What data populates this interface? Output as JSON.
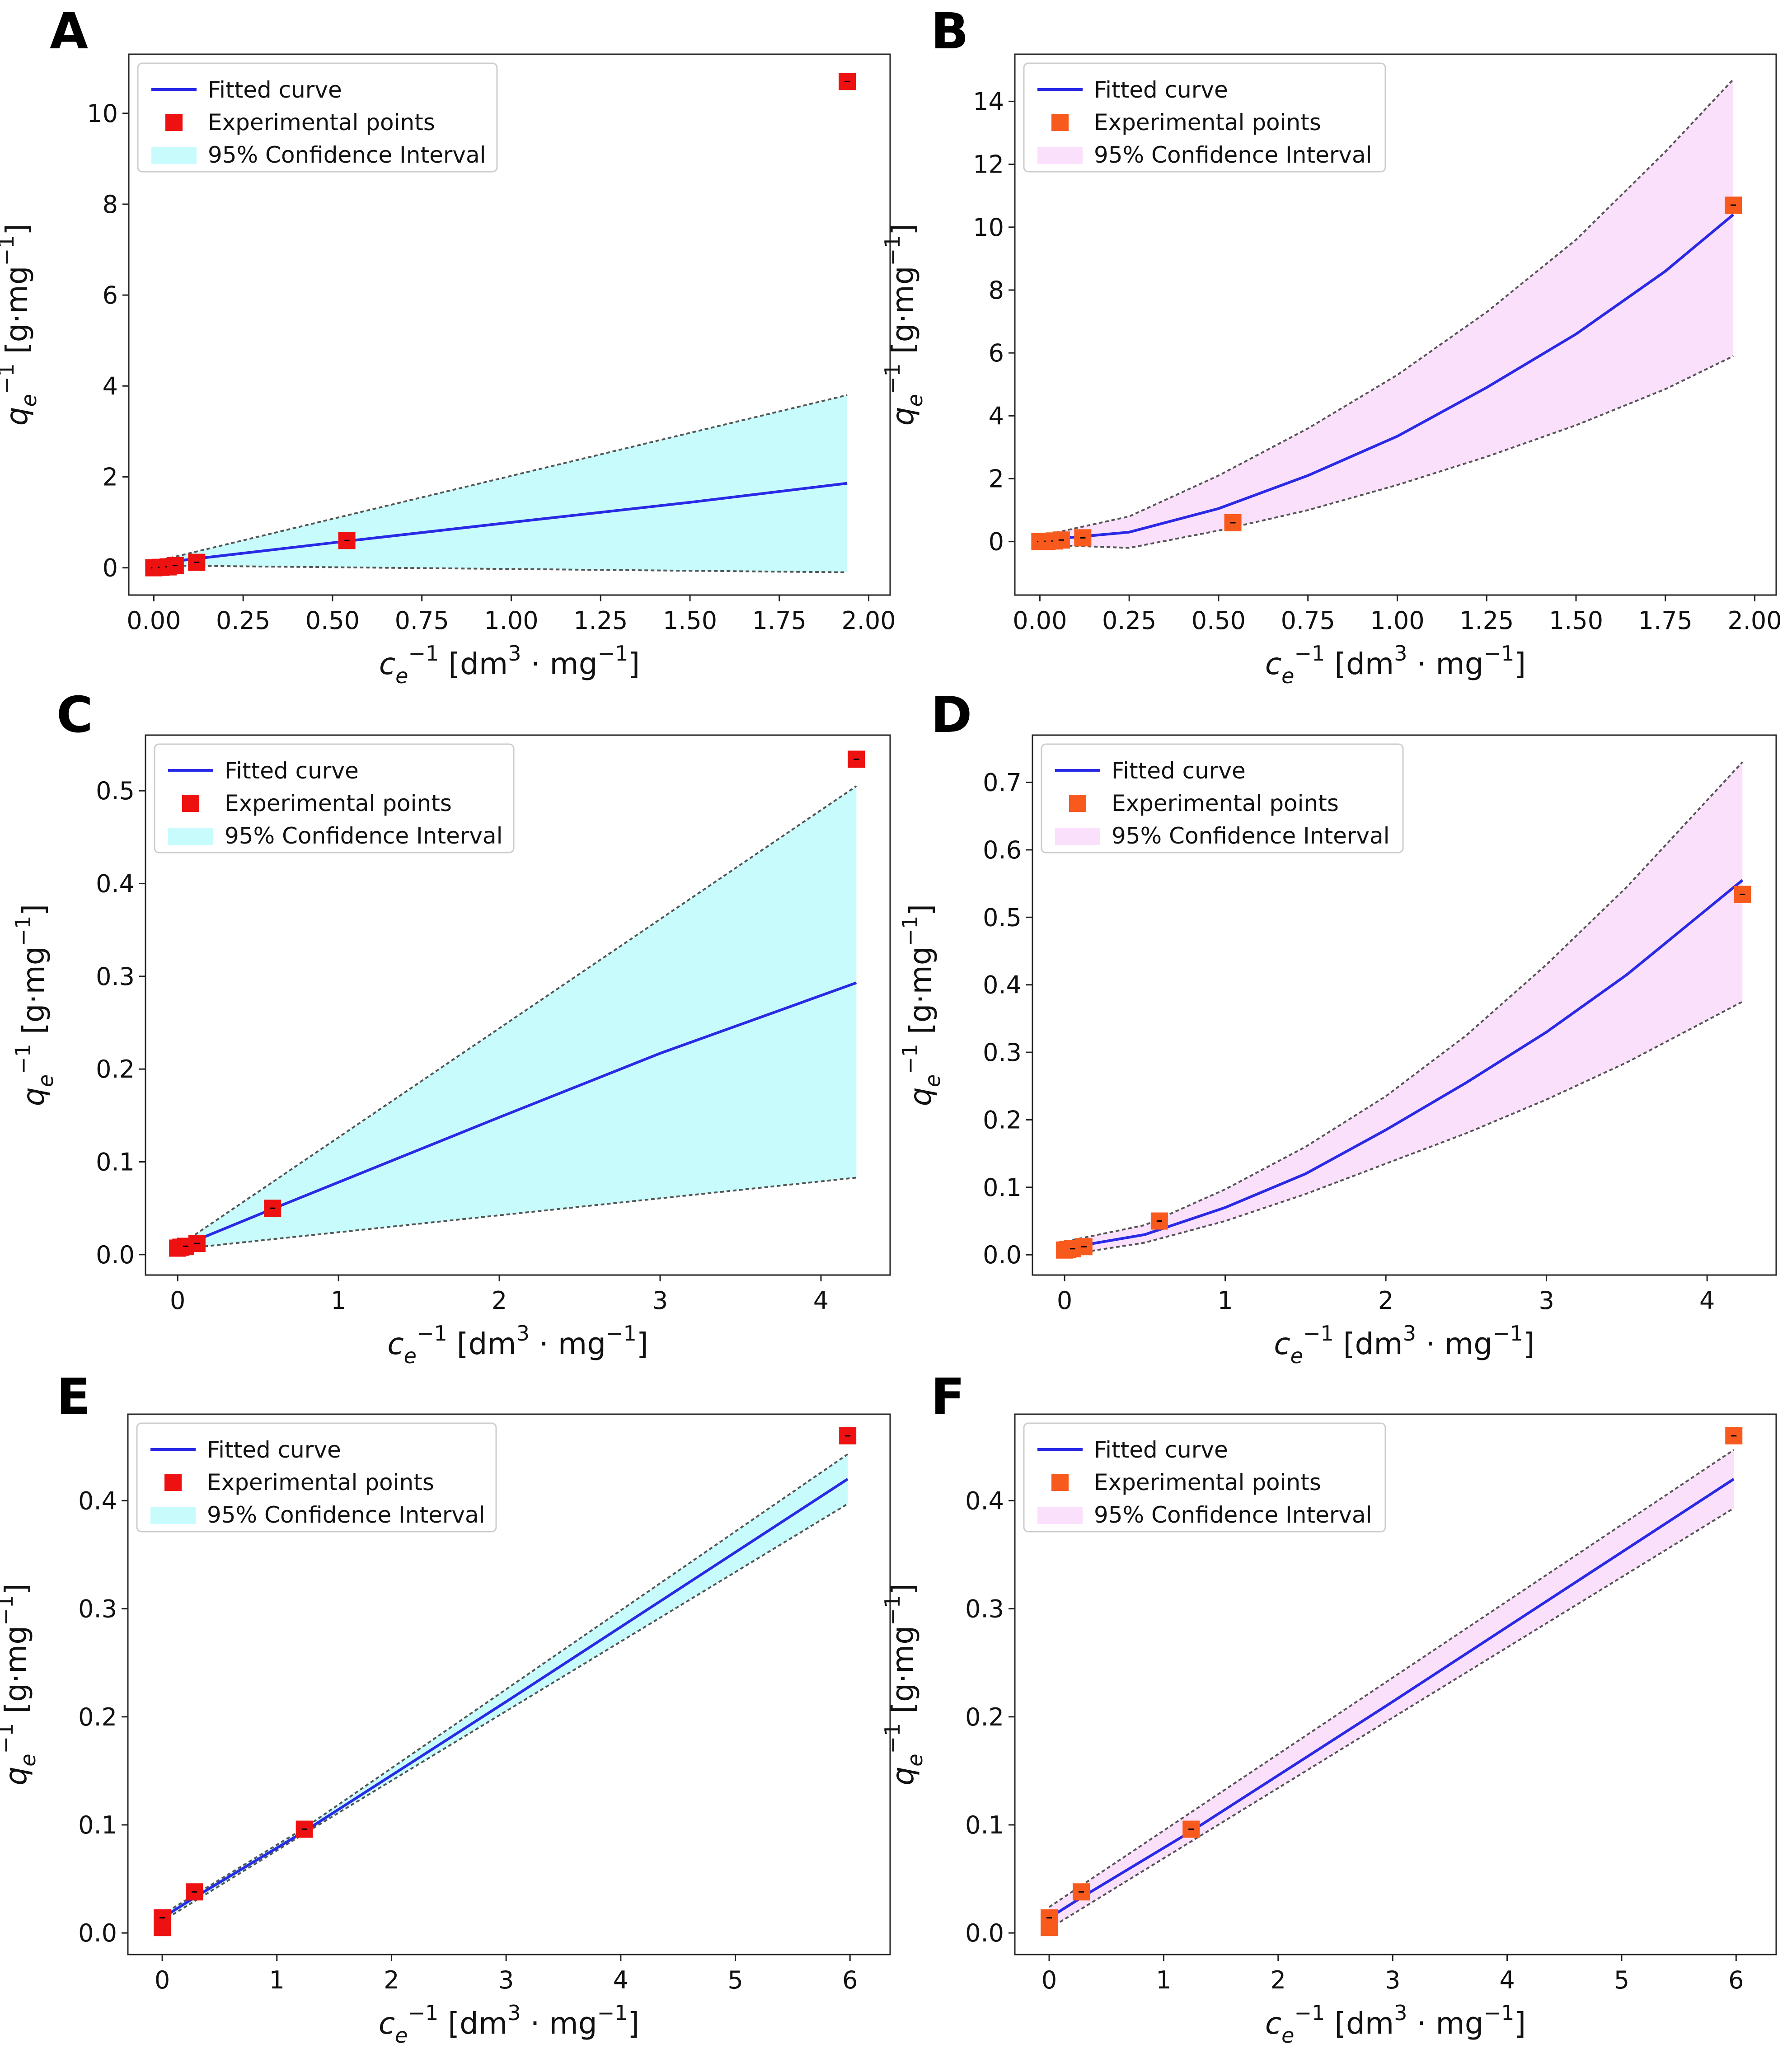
{
  "colors": {
    "line": "#2a2ae6",
    "point_red": "#ee1111",
    "point_orange": "#f85a1e",
    "band_cyan": "#c8fcfc",
    "band_pink": "#fbe0fb",
    "dash": "#555555",
    "axis": "#222222"
  },
  "chart_data": [
    {
      "panel": "A",
      "type": "line",
      "series": [
        {
          "name": "Fitted curve",
          "x": [
            0.01,
            0.5,
            1.0,
            1.5,
            1.94
          ],
          "y": [
            0.1,
            0.55,
            1.0,
            1.44,
            1.86
          ]
        },
        {
          "name": "Experimental points",
          "x": [
            0.0,
            0.02,
            0.04,
            0.06,
            0.12,
            0.54,
            1.94
          ],
          "y": [
            0.0,
            0.01,
            0.02,
            0.05,
            0.12,
            0.6,
            10.7
          ]
        },
        {
          "name": "95% Confidence Interval",
          "x": [
            0.01,
            1.94
          ],
          "lower": [
            0.05,
            -0.1
          ],
          "upper": [
            0.15,
            3.8
          ]
        }
      ],
      "xticks": [
        "0.00",
        "0.25",
        "0.50",
        "0.75",
        "1.00",
        "1.25",
        "1.50",
        "1.75",
        "2.00"
      ],
      "yticks": [
        "0",
        "2",
        "4",
        "6",
        "8",
        "10"
      ],
      "xlim": [
        -0.07,
        2.06
      ],
      "ylim": [
        -0.6,
        11.3
      ]
    },
    {
      "panel": "B",
      "type": "line",
      "series": [
        {
          "name": "Fitted curve",
          "x": [
            0.01,
            0.25,
            0.5,
            0.75,
            1.0,
            1.25,
            1.5,
            1.75,
            1.94
          ],
          "y": [
            0.05,
            0.3,
            1.05,
            2.1,
            3.35,
            4.9,
            6.6,
            8.6,
            10.4
          ]
        },
        {
          "name": "Experimental points",
          "x": [
            0.0,
            0.02,
            0.04,
            0.06,
            0.12,
            0.54,
            1.94
          ],
          "y": [
            0.0,
            0.01,
            0.02,
            0.05,
            0.12,
            0.6,
            10.7
          ]
        },
        {
          "name": "95% Confidence Interval",
          "x": [
            0.01,
            0.25,
            0.5,
            0.75,
            1.0,
            1.25,
            1.5,
            1.75,
            1.94
          ],
          "lower": [
            -0.1,
            -0.2,
            0.35,
            1.0,
            1.8,
            2.7,
            3.7,
            4.85,
            5.9
          ],
          "upper": [
            0.2,
            0.8,
            2.1,
            3.6,
            5.3,
            7.3,
            9.6,
            12.4,
            14.7
          ]
        }
      ],
      "xticks": [
        "0.00",
        "0.25",
        "0.50",
        "0.75",
        "1.00",
        "1.25",
        "1.50",
        "1.75",
        "2.00"
      ],
      "yticks": [
        "0",
        "2",
        "4",
        "6",
        "8",
        "10",
        "12",
        "14"
      ],
      "xlim": [
        -0.07,
        2.06
      ],
      "ylim": [
        -1.7,
        15.5
      ]
    },
    {
      "panel": "C",
      "type": "line",
      "series": [
        {
          "name": "Fitted curve",
          "x": [
            0.01,
            0.6,
            1.0,
            2.0,
            3.0,
            4.22
          ],
          "y": [
            0.008,
            0.05,
            0.078,
            0.148,
            0.217,
            0.293
          ]
        },
        {
          "name": "Experimental points",
          "x": [
            0.0,
            0.02,
            0.05,
            0.12,
            0.59,
            4.22
          ],
          "y": [
            0.007,
            0.008,
            0.009,
            0.012,
            0.05,
            0.534
          ]
        },
        {
          "name": "95% Confidence Interval",
          "x": [
            0.01,
            4.22
          ],
          "lower": [
            0.006,
            0.083
          ],
          "upper": [
            0.01,
            0.505
          ]
        }
      ],
      "xticks": [
        "0",
        "1",
        "2",
        "3",
        "4"
      ],
      "yticks": [
        "0.0",
        "0.1",
        "0.2",
        "0.3",
        "0.4",
        "0.5"
      ],
      "xlim": [
        -0.2,
        4.43
      ],
      "ylim": [
        -0.022,
        0.56
      ]
    },
    {
      "panel": "D",
      "type": "line",
      "series": [
        {
          "name": "Fitted curve",
          "x": [
            0.01,
            0.5,
            1.0,
            1.5,
            2.0,
            2.5,
            3.0,
            3.5,
            4.22
          ],
          "y": [
            0.01,
            0.03,
            0.07,
            0.12,
            0.185,
            0.255,
            0.33,
            0.415,
            0.555
          ]
        },
        {
          "name": "Experimental points",
          "x": [
            0.0,
            0.02,
            0.05,
            0.12,
            0.59,
            4.22
          ],
          "y": [
            0.007,
            0.008,
            0.009,
            0.012,
            0.05,
            0.534
          ]
        },
        {
          "name": "95% Confidence Interval",
          "x": [
            0.01,
            0.5,
            1.0,
            1.5,
            2.0,
            2.5,
            3.0,
            3.5,
            4.22
          ],
          "lower": [
            0.0,
            0.018,
            0.05,
            0.09,
            0.135,
            0.18,
            0.23,
            0.285,
            0.375
          ],
          "upper": [
            0.02,
            0.044,
            0.097,
            0.16,
            0.235,
            0.325,
            0.43,
            0.545,
            0.73
          ]
        }
      ],
      "xticks": [
        "0",
        "1",
        "2",
        "3",
        "4"
      ],
      "yticks": [
        "0.0",
        "0.1",
        "0.2",
        "0.3",
        "0.4",
        "0.5",
        "0.6",
        "0.7"
      ],
      "xlim": [
        -0.2,
        4.43
      ],
      "ylim": [
        -0.03,
        0.77
      ]
    },
    {
      "panel": "E",
      "type": "line",
      "series": [
        {
          "name": "Fitted curve",
          "x": [
            0.0,
            0.3,
            1.24,
            3.0,
            5.98
          ],
          "y": [
            0.014,
            0.034,
            0.094,
            0.214,
            0.42
          ]
        },
        {
          "name": "Experimental points",
          "x": [
            0.0,
            0.0,
            0.0,
            0.28,
            1.24,
            5.98
          ],
          "y": [
            0.005,
            0.01,
            0.014,
            0.038,
            0.096,
            0.46
          ]
        },
        {
          "name": "95% Confidence Interval",
          "x": [
            0.0,
            1.24,
            5.98
          ],
          "lower": [
            0.011,
            0.092,
            0.397
          ],
          "upper": [
            0.017,
            0.097,
            0.443
          ]
        }
      ],
      "xticks": [
        "0",
        "1",
        "2",
        "3",
        "4",
        "5",
        "6"
      ],
      "yticks": [
        "0.0",
        "0.1",
        "0.2",
        "0.3",
        "0.4"
      ],
      "xlim": [
        -0.3,
        6.35
      ],
      "ylim": [
        -0.02,
        0.48
      ]
    },
    {
      "panel": "F",
      "type": "line",
      "series": [
        {
          "name": "Fitted curve",
          "x": [
            0.0,
            0.3,
            1.24,
            3.0,
            5.98
          ],
          "y": [
            0.014,
            0.034,
            0.094,
            0.214,
            0.42
          ]
        },
        {
          "name": "Experimental points",
          "x": [
            0.0,
            0.0,
            0.0,
            0.28,
            1.24,
            5.98
          ],
          "y": [
            0.005,
            0.01,
            0.014,
            0.038,
            0.096,
            0.46
          ]
        },
        {
          "name": "95% Confidence Interval",
          "x": [
            0.0,
            5.98
          ],
          "lower": [
            0.004,
            0.393
          ],
          "upper": [
            0.024,
            0.447
          ]
        }
      ],
      "xticks": [
        "0",
        "1",
        "2",
        "3",
        "4",
        "5",
        "6"
      ],
      "yticks": [
        "0.0",
        "0.1",
        "0.2",
        "0.3",
        "0.4"
      ],
      "xlim": [
        -0.3,
        6.35
      ],
      "ylim": [
        -0.02,
        0.48
      ]
    }
  ]
}
